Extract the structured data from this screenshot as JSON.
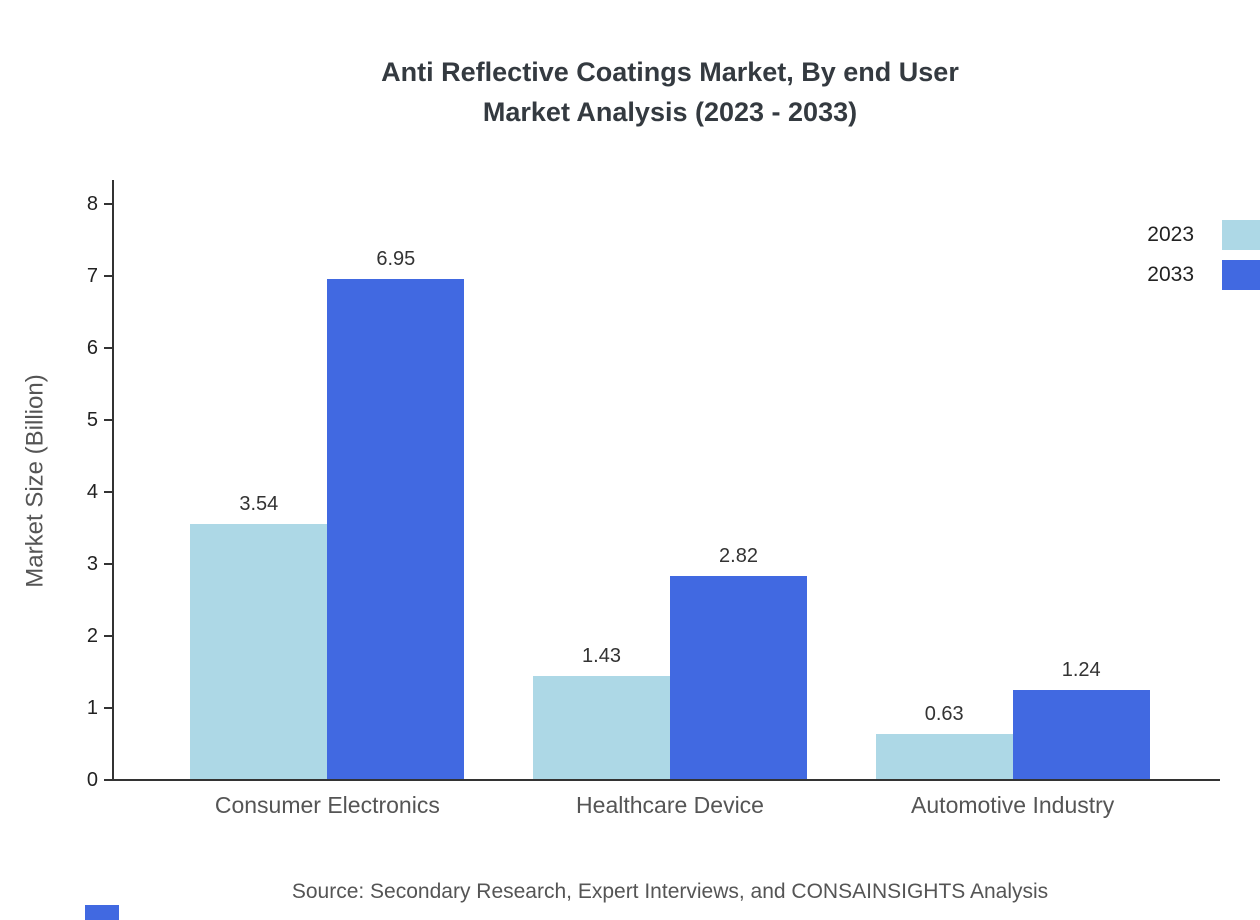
{
  "title": {
    "line1": "Anti Reflective Coatings Market, By end User",
    "line2": "Market Analysis (2023 - 2033)"
  },
  "source_note": "Source: Secondary Research, Expert Interviews, and CONSAINSIGHTS Analysis",
  "colors": {
    "series_2023": "#ADD8E6",
    "series_2033": "#4169E1",
    "title_text": "#343A40",
    "axis": "#333333",
    "muted_text": "#555555",
    "brand": "#4169E1"
  },
  "chart_data": {
    "type": "bar",
    "title": "Anti Reflective Coatings Market, By end User Market Analysis (2023 - 2033)",
    "categories": [
      "Consumer Electronics",
      "Healthcare Device",
      "Automotive Industry"
    ],
    "series": [
      {
        "name": "2023",
        "color": "#ADD8E6",
        "values": [
          3.54,
          1.43,
          0.63
        ]
      },
      {
        "name": "2033",
        "color": "#4169E1",
        "values": [
          6.95,
          2.82,
          1.24
        ]
      }
    ],
    "xlabel": "",
    "ylabel": "Market Size (Billion)",
    "ylim": [
      0,
      8
    ],
    "yticks": [
      0,
      1,
      2,
      3,
      4,
      5,
      6,
      7,
      8
    ],
    "grid": false,
    "legend_position": "top-right",
    "value_label_decimals": 2
  }
}
